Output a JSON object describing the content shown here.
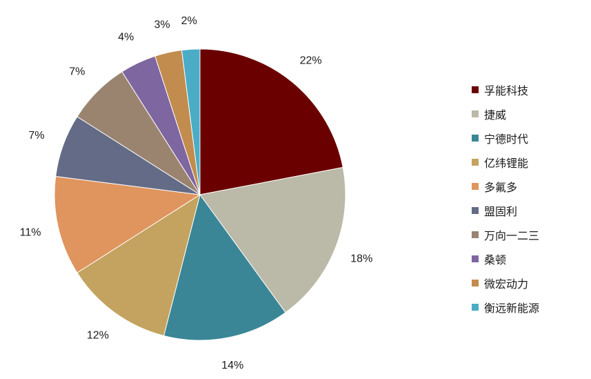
{
  "chart_data": {
    "type": "pie",
    "title": "",
    "legend_position": "right",
    "slices": [
      {
        "label": "孚能科技",
        "value": 22,
        "value_label": "22%",
        "color": "#6b0000"
      },
      {
        "label": "捷威",
        "value": 18,
        "value_label": "18%",
        "color": "#bbb9a7"
      },
      {
        "label": "宁德时代",
        "value": 14,
        "value_label": "14%",
        "color": "#3a8696"
      },
      {
        "label": "亿纬锂能",
        "value": 12,
        "value_label": "12%",
        "color": "#c3a35f"
      },
      {
        "label": "多氟多",
        "value": 11,
        "value_label": "11%",
        "color": "#e0945e"
      },
      {
        "label": "盟固利",
        "value": 7,
        "value_label": "7%",
        "color": "#646b86"
      },
      {
        "label": "万向一二三",
        "value": 7,
        "value_label": "7%",
        "color": "#9a8470"
      },
      {
        "label": "桑顿",
        "value": 4,
        "value_label": "4%",
        "color": "#7e66a0"
      },
      {
        "label": "微宏动力",
        "value": 3,
        "value_label": "3%",
        "color": "#c28c4f"
      },
      {
        "label": "衡远新能源",
        "value": 2,
        "value_label": "2%",
        "color": "#4aacc6"
      }
    ]
  }
}
